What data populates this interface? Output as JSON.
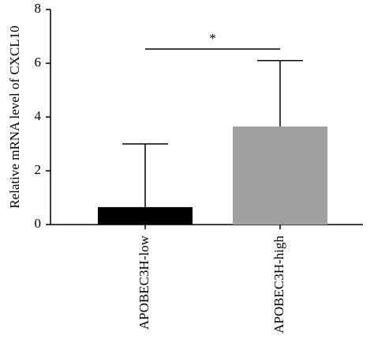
{
  "chart_data": {
    "type": "bar",
    "ylabel": "Relative mRNA level of CXCL10",
    "categories": [
      "APOBEC3H-low",
      "APOBEC3H-high"
    ],
    "values": [
      0.65,
      3.65
    ],
    "errors": [
      2.35,
      2.45
    ],
    "colors": [
      "#000000",
      "#a0a0a0"
    ],
    "ylim": [
      0,
      8
    ],
    "yticks": [
      0,
      2,
      4,
      6,
      8
    ],
    "annotation": "*"
  }
}
